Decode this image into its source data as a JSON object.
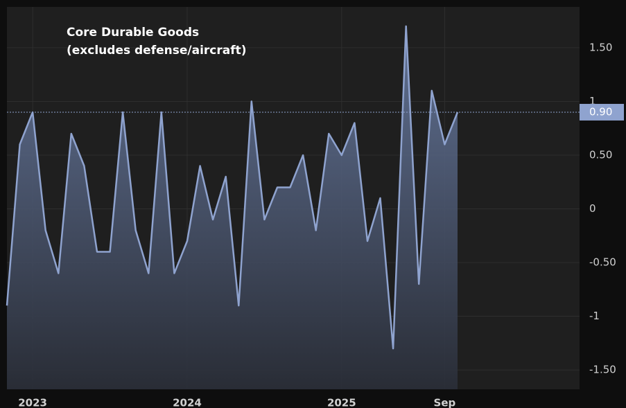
{
  "chart_data": {
    "type": "area",
    "title": "Core Durable Goods",
    "subtitle": "(excludes defense/aircraft)",
    "categories": [
      null,
      null,
      "2023",
      null,
      null,
      null,
      null,
      null,
      null,
      null,
      null,
      null,
      null,
      null,
      "2024",
      null,
      null,
      null,
      null,
      null,
      null,
      null,
      null,
      null,
      null,
      null,
      "2025",
      null,
      null,
      null,
      null,
      null,
      null,
      null,
      "Sep",
      null
    ],
    "values": [
      -0.9,
      0.6,
      0.9,
      -0.2,
      -0.6,
      0.7,
      0.4,
      -0.4,
      -0.4,
      0.9,
      -0.2,
      -0.6,
      0.9,
      -0.6,
      -0.3,
      0.4,
      -0.1,
      0.3,
      -0.9,
      1.0,
      -0.1,
      0.2,
      0.2,
      0.5,
      -0.2,
      0.7,
      0.5,
      0.8,
      -0.3,
      0.1,
      -1.3,
      1.7,
      -0.7,
      1.1,
      0.6,
      0.9
    ],
    "color": "#8fa3cf",
    "ylim": [
      -1.68,
      1.88
    ],
    "yticks": [
      {
        "value": -1.5,
        "label": "-1.50"
      },
      -1,
      {
        "value": -0.5,
        "label": "-0.50"
      },
      0,
      {
        "value": 0.5,
        "label": "0.50"
      },
      1,
      {
        "value": 1.5,
        "label": "1.50"
      }
    ],
    "grid": true,
    "last_value": {
      "value": 0.9,
      "label": "0.90"
    }
  }
}
